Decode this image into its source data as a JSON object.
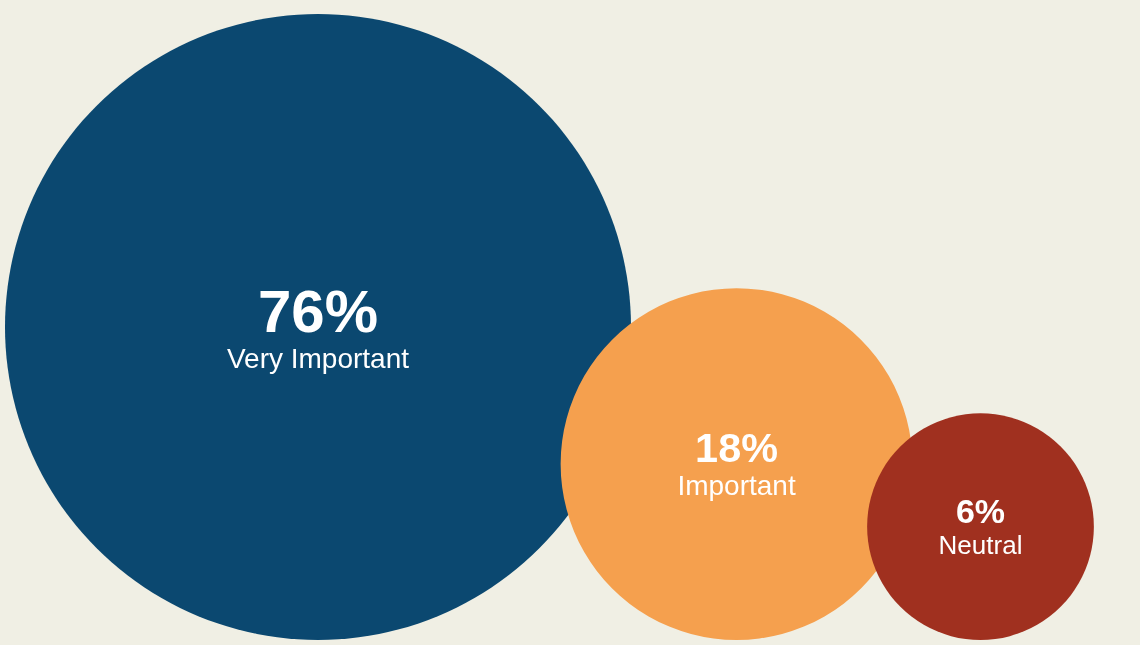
{
  "chart_data": {
    "type": "other",
    "categories": [
      "Very Important",
      "Important",
      "Neutral"
    ],
    "values": [
      76,
      18,
      6
    ],
    "value_labels": [
      "76%",
      "18%",
      "6%"
    ],
    "colors": [
      "#0b4870",
      "#f5a04e",
      "#a0301f"
    ],
    "data_labels": true
  }
}
